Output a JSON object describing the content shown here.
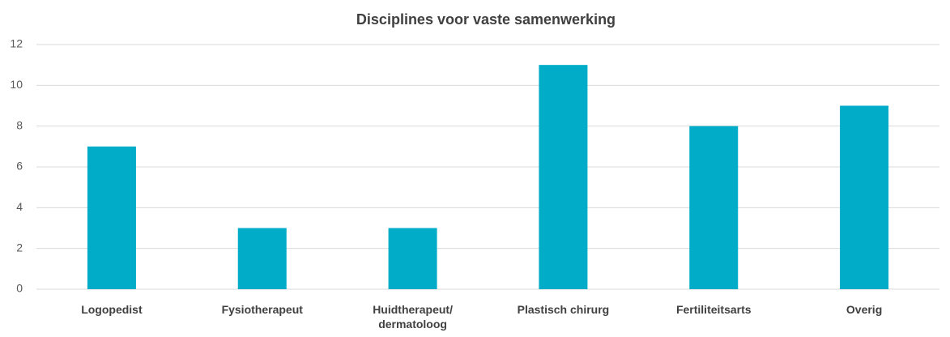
{
  "chart_data": {
    "type": "bar",
    "title": "Disciplines voor vaste samenwerking",
    "categories": [
      "Logopedist",
      "Fysiotherapeut",
      "Huidtherapeut/ dermatoloog",
      "Plastisch chirurg",
      "Fertiliteitsarts",
      "Overig"
    ],
    "values": [
      7,
      3,
      3,
      11,
      8,
      9
    ],
    "color": "#00acc8",
    "ylim": [
      0,
      12
    ],
    "yticks": [
      0,
      2,
      4,
      6,
      8,
      10,
      12
    ],
    "grid": true
  }
}
